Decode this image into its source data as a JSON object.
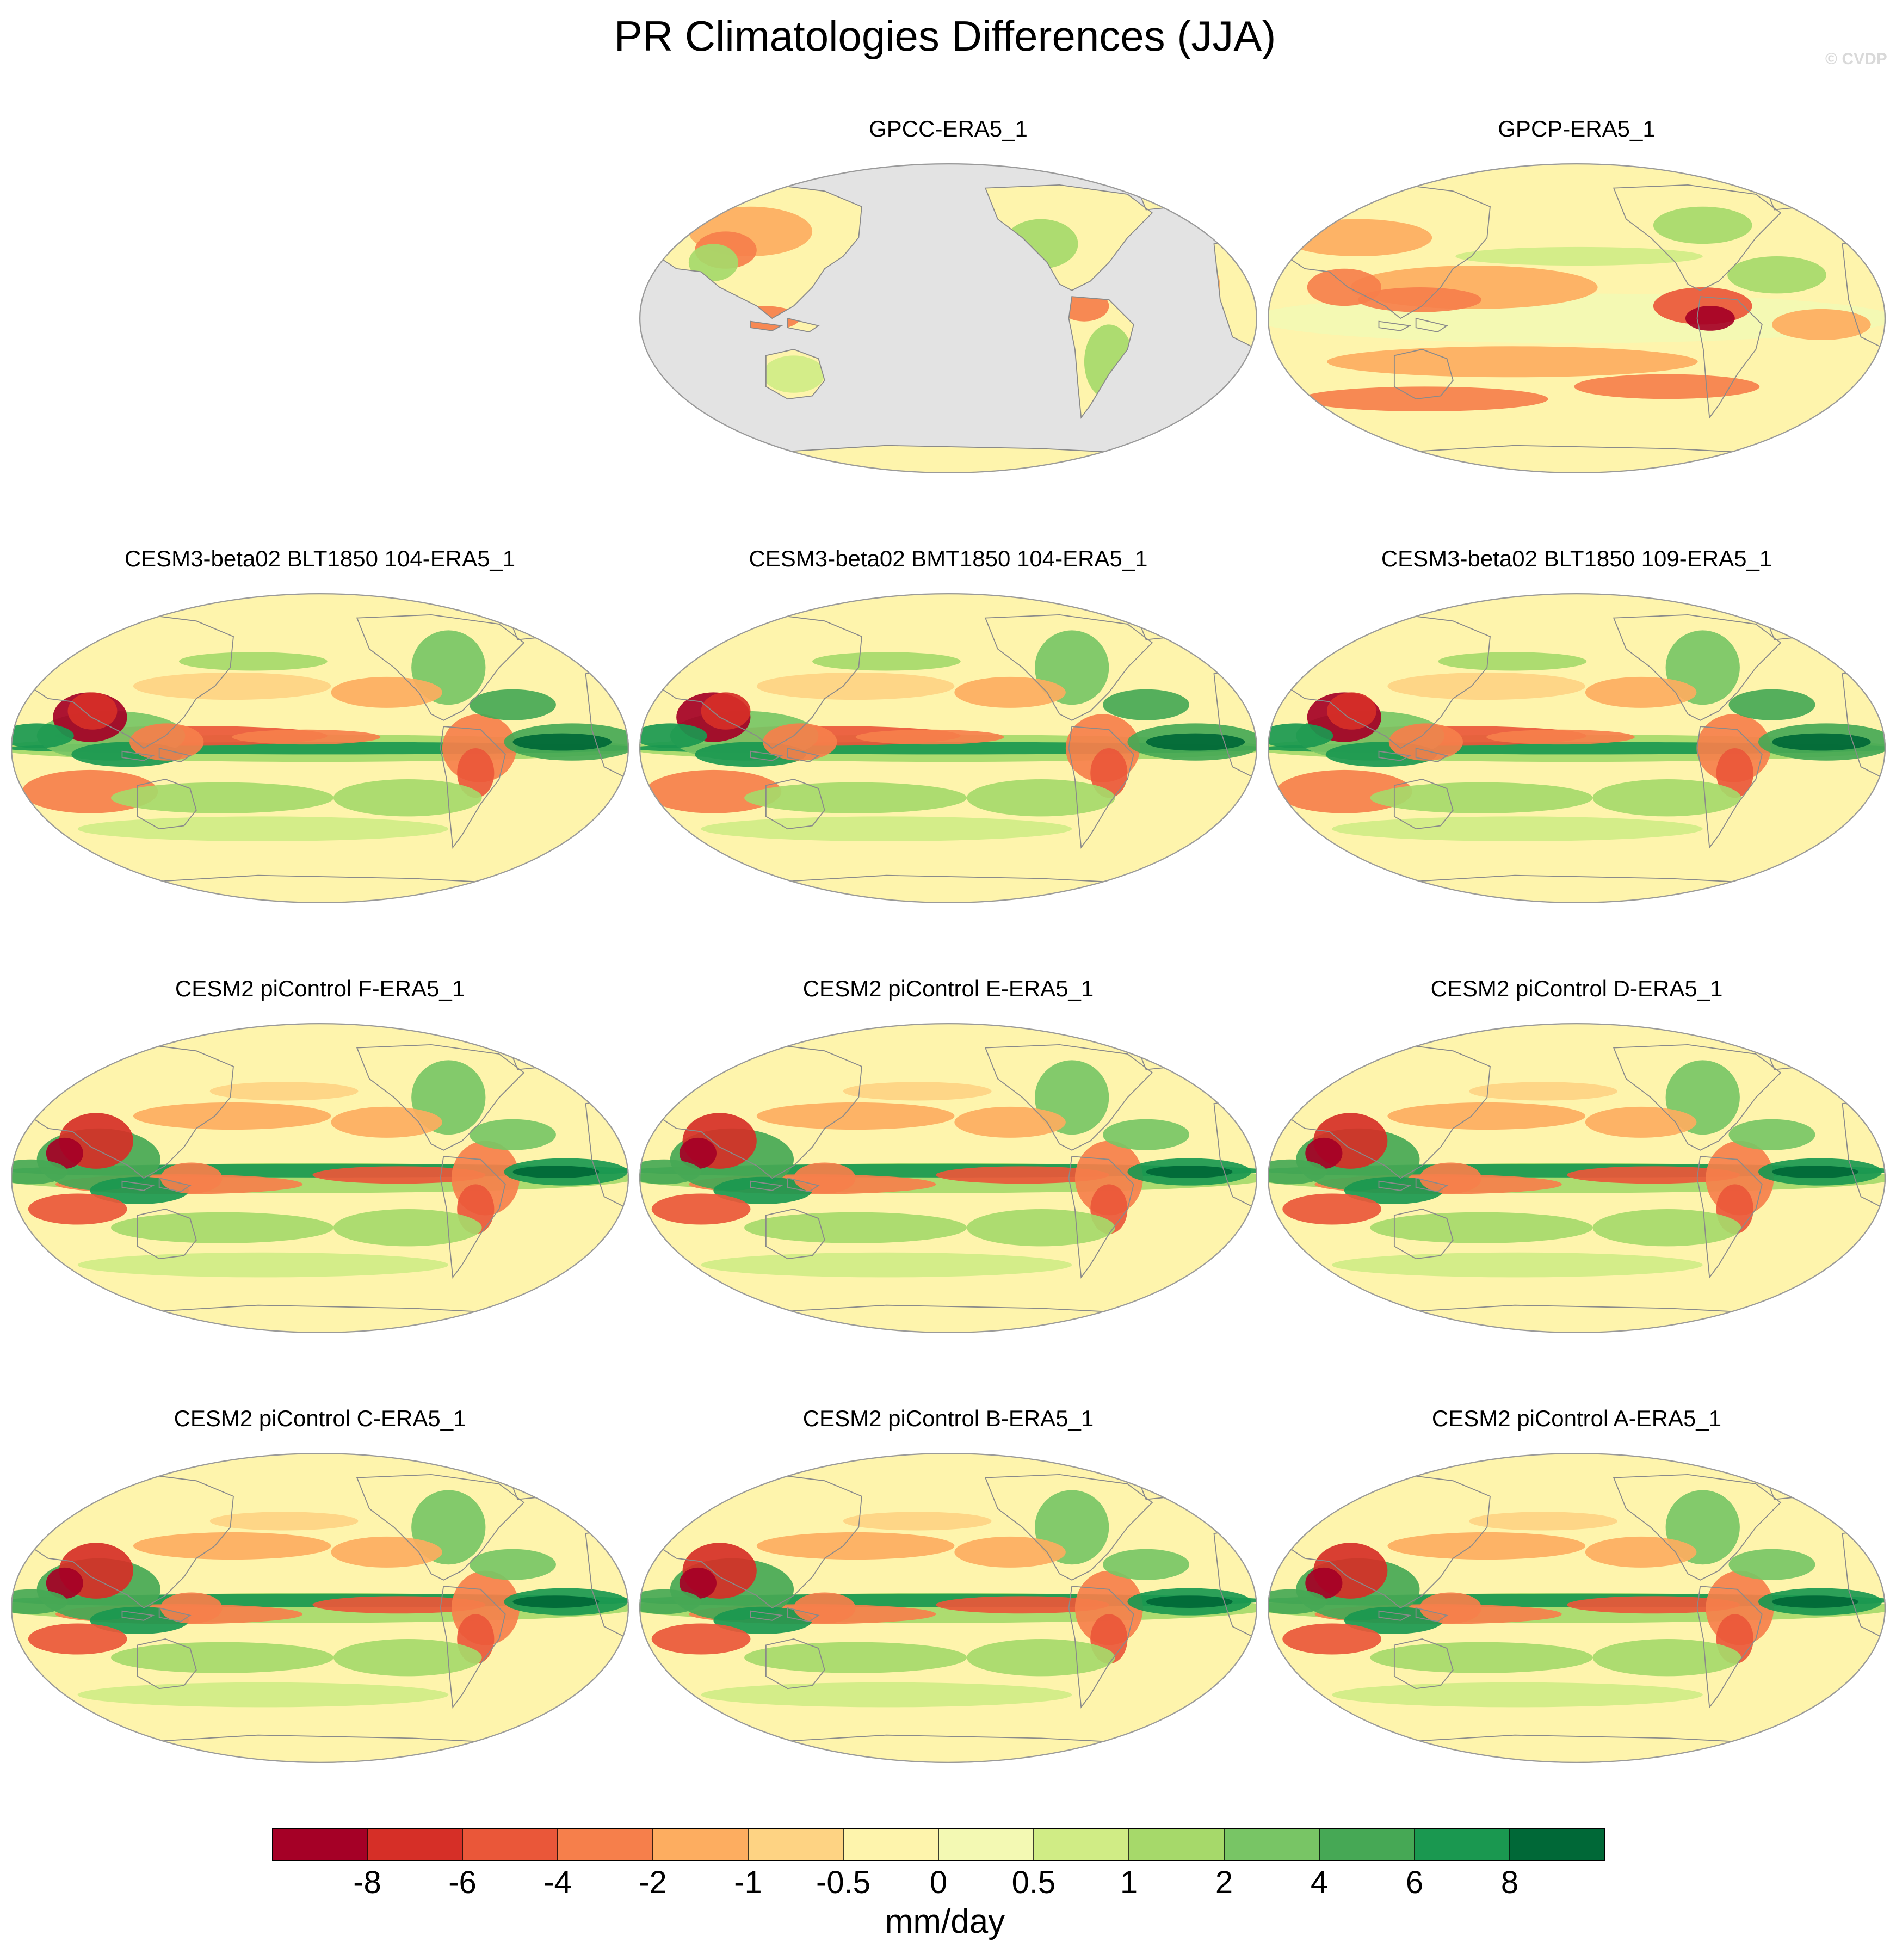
{
  "title": "PR Climatologies Differences (JJA)",
  "watermark": "© CVDP",
  "panels": [
    {
      "title": "GPCC-ERA5_1",
      "ocean_masked": true
    },
    {
      "title": "GPCP-ERA5_1",
      "ocean_masked": false
    },
    {
      "title": "CESM3-beta02 BLT1850 104-ERA5_1",
      "ocean_masked": false
    },
    {
      "title": "CESM3-beta02 BMT1850 104-ERA5_1",
      "ocean_masked": false
    },
    {
      "title": "CESM3-beta02 BLT1850 109-ERA5_1",
      "ocean_masked": false
    },
    {
      "title": "CESM2 piControl F-ERA5_1",
      "ocean_masked": false
    },
    {
      "title": "CESM2 piControl E-ERA5_1",
      "ocean_masked": false
    },
    {
      "title": "CESM2 piControl D-ERA5_1",
      "ocean_masked": false
    },
    {
      "title": "CESM2 piControl C-ERA5_1",
      "ocean_masked": false
    },
    {
      "title": "CESM2 piControl B-ERA5_1",
      "ocean_masked": false
    },
    {
      "title": "CESM2 piControl A-ERA5_1",
      "ocean_masked": false
    }
  ],
  "colorbar": {
    "units": "mm/day",
    "tick_labels": [
      "-8",
      "-6",
      "-4",
      "-2",
      "-1",
      "-0.5",
      "0",
      "0.5",
      "1",
      "2",
      "4",
      "6",
      "8"
    ],
    "colors": [
      "#a50026",
      "#d62f27",
      "#ea5739",
      "#f67f4b",
      "#fdad60",
      "#fed383",
      "#fef4ac",
      "#f3f9b3",
      "#d0ec85",
      "#a6d96a",
      "#78c565",
      "#46a855",
      "#1a9850",
      "#006837"
    ]
  },
  "map_colors": {
    "masked": "#e3e3e3",
    "coastline": "#8a8a8a",
    "background": "#fef4ac"
  }
}
